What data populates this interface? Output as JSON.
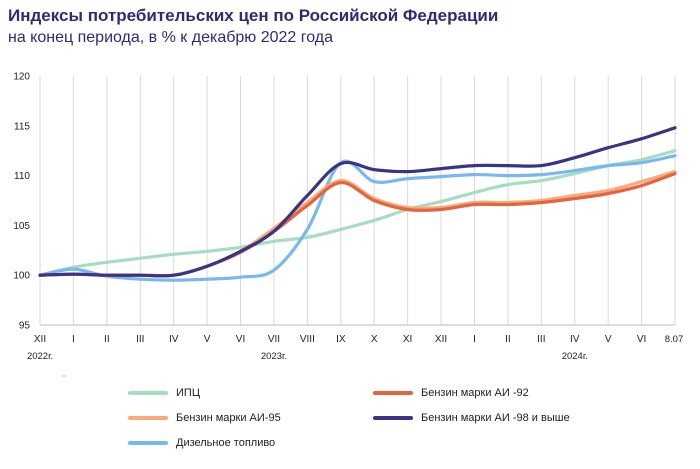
{
  "header": {
    "title": "Индексы потребительских цен по Российской Федерации",
    "subtitle": "на конец периода, в % к декабрю 2022 года"
  },
  "chart_data": {
    "type": "line",
    "title": "Индексы потребительских цен по Российской Федерации",
    "subtitle": "на конец периода, в % к декабрю 2022 года",
    "ylim": [
      95,
      120
    ],
    "y_ticks": [
      95,
      100,
      105,
      110,
      115,
      120
    ],
    "grid": "vertical",
    "categories": [
      "XII",
      "I",
      "II",
      "III",
      "IV",
      "V",
      "VI",
      "VII",
      "VIII",
      "IX",
      "X",
      "XI",
      "XII",
      "I",
      "II",
      "III",
      "IV",
      "V",
      "VI",
      "8.07"
    ],
    "year_labels": [
      {
        "label": "2022г.",
        "at": 0
      },
      {
        "label": "2023г.",
        "at": 7
      },
      {
        "label": "2024г.",
        "at": 16
      }
    ],
    "series": [
      {
        "name": "ИПЦ",
        "color": "#a6dcbf",
        "values": [
          100,
          100.8,
          101.3,
          101.7,
          102.1,
          102.4,
          102.8,
          103.4,
          103.8,
          104.6,
          105.5,
          106.6,
          107.4,
          108.3,
          109.1,
          109.5,
          110.2,
          111.0,
          111.6,
          112.5
        ]
      },
      {
        "name": "Бензин марки АИ -92",
        "color": "#e5643f",
        "values": [
          100,
          100.1,
          100.0,
          100.0,
          100.0,
          100.9,
          102.3,
          104.4,
          107.0,
          109.3,
          107.5,
          106.6,
          106.6,
          107.1,
          107.1,
          107.3,
          107.7,
          108.2,
          109.0,
          110.2
        ]
      },
      {
        "name": "Бензин марки АИ-95",
        "color": "#f6ab7b",
        "values": [
          100,
          100.1,
          100.0,
          100.0,
          100.0,
          100.9,
          102.4,
          104.7,
          107.3,
          109.5,
          107.7,
          106.8,
          106.8,
          107.3,
          107.3,
          107.5,
          108.0,
          108.5,
          109.4,
          110.4
        ]
      },
      {
        "name": "Бензин марки АИ -98 и  выше",
        "color": "#3a3484",
        "values": [
          100,
          100.1,
          100.0,
          100.0,
          100.0,
          100.9,
          102.4,
          104.4,
          108.0,
          111.2,
          110.6,
          110.4,
          110.7,
          111.0,
          111.0,
          111.0,
          111.8,
          112.8,
          113.7,
          114.8
        ]
      },
      {
        "name": "Дизельное топливо",
        "color": "#78b8f0",
        "values": [
          100,
          100.6,
          99.9,
          99.6,
          99.5,
          99.6,
          99.8,
          100.5,
          104.6,
          111.3,
          109.4,
          109.7,
          109.9,
          110.1,
          110.0,
          110.1,
          110.5,
          111.0,
          111.3,
          112.0
        ]
      }
    ],
    "legend": {
      "position": "bottom",
      "columns": 2
    }
  }
}
